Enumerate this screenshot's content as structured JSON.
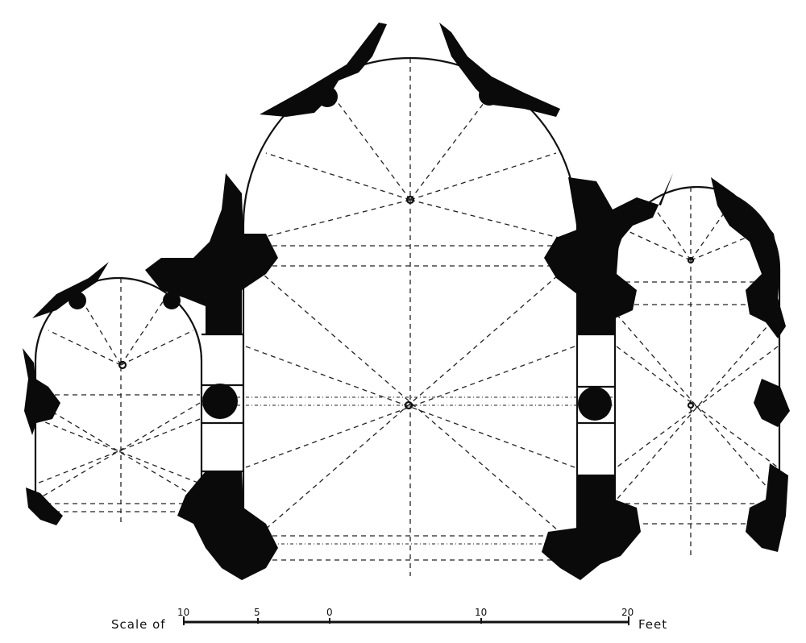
{
  "scale": {
    "label_left": "Scale of",
    "label_right": "Feet",
    "ticks": [
      "10",
      "5",
      "0",
      "10",
      "20"
    ]
  }
}
